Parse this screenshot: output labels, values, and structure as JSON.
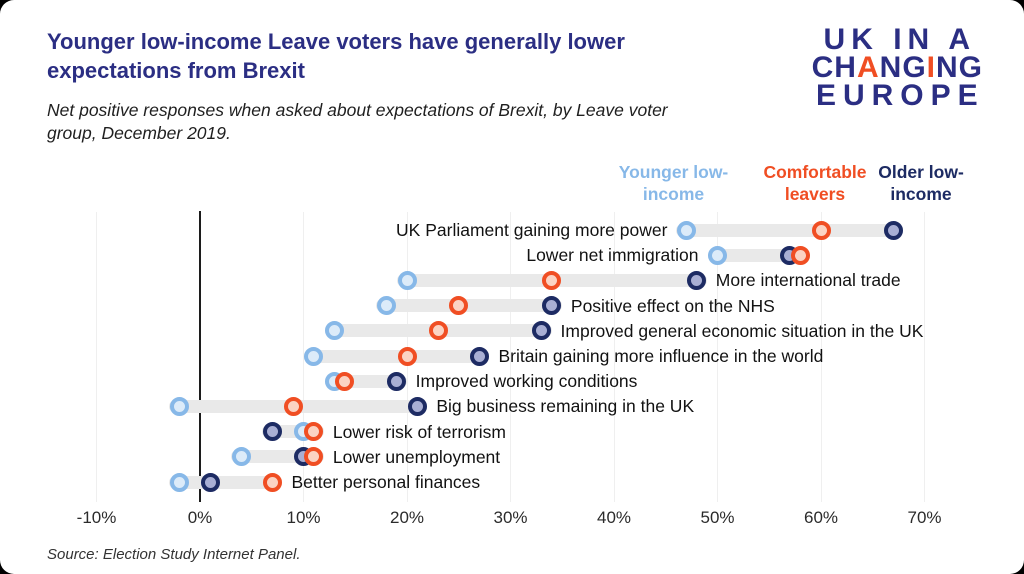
{
  "header": {
    "title": "Younger low-income Leave voters have generally lower expectations from Brexit",
    "subtitle": "Net positive responses when asked about expectations of Brexit, by Leave voter group, December 2019.",
    "logo": {
      "line1": "UK IN A",
      "line2_parts": [
        {
          "text": "CH",
          "orange": false
        },
        {
          "text": "A",
          "orange": true
        },
        {
          "text": "NG",
          "orange": false
        },
        {
          "text": "I",
          "orange": true
        },
        {
          "text": "NG",
          "orange": false
        }
      ],
      "line3": "EUROPE"
    }
  },
  "footer": {
    "source": "Source: Election Study Internet Panel."
  },
  "colors": {
    "title_navy": "#2b2e83",
    "accent_orange": "#f04e23",
    "younger_blue": "#87b8e8",
    "older_navy": "#1d2b63",
    "range_bar_grey": "#e9e9e9"
  },
  "chart_data": {
    "type": "scatter",
    "variant": "dumbbell-dot-plot",
    "title": "Younger low-income Leave voters have generally lower expectations from Brexit",
    "subtitle": "Net positive responses when asked about expectations of Brexit, by Leave voter group, December 2019.",
    "source": "Source: Election Study Internet Panel.",
    "x_unit": "%",
    "xlim": [
      -10,
      70
    ],
    "x_tick_values": [
      -10,
      0,
      10,
      20,
      30,
      40,
      50,
      60,
      70
    ],
    "x_tick_labels": [
      "-10%",
      "0%",
      "10%",
      "20%",
      "30%",
      "40%",
      "50%",
      "60%",
      "70%"
    ],
    "legend_position": "top-right",
    "grid": "light-vertical",
    "categories": [
      "UK Parliament gaining more power",
      "Lower net immigration",
      "More international trade",
      "Positive effect on the NHS",
      "Improved general economic situation in the UK",
      "Britain gaining more influence in the world",
      "Improved working conditions",
      "Big business remaining in the UK",
      "Lower risk of terrorism",
      "Lower unemployment",
      "Better personal finances"
    ],
    "label_side": [
      "left",
      "left",
      "right",
      "right",
      "right",
      "right",
      "right",
      "right",
      "right",
      "right",
      "right"
    ],
    "series": [
      {
        "id": "younger-low-income",
        "name": "Younger low-income",
        "color": "#87b8e8",
        "fill": "#dcebf9",
        "values": [
          47,
          50,
          20,
          18,
          13,
          11,
          13,
          -2,
          10,
          4,
          -2
        ]
      },
      {
        "id": "comfortable-leavers",
        "name": "Comfortable leavers",
        "color": "#f04e23",
        "fill": "#fbd3c3",
        "values": [
          60,
          58,
          34,
          25,
          23,
          20,
          14,
          9,
          11,
          11,
          7
        ]
      },
      {
        "id": "older-low-income",
        "name": "Older low-income",
        "color": "#1d2b63",
        "fill": "#a9afd4",
        "values": [
          67,
          57,
          48,
          34,
          33,
          27,
          19,
          21,
          7,
          10,
          1
        ]
      }
    ]
  }
}
